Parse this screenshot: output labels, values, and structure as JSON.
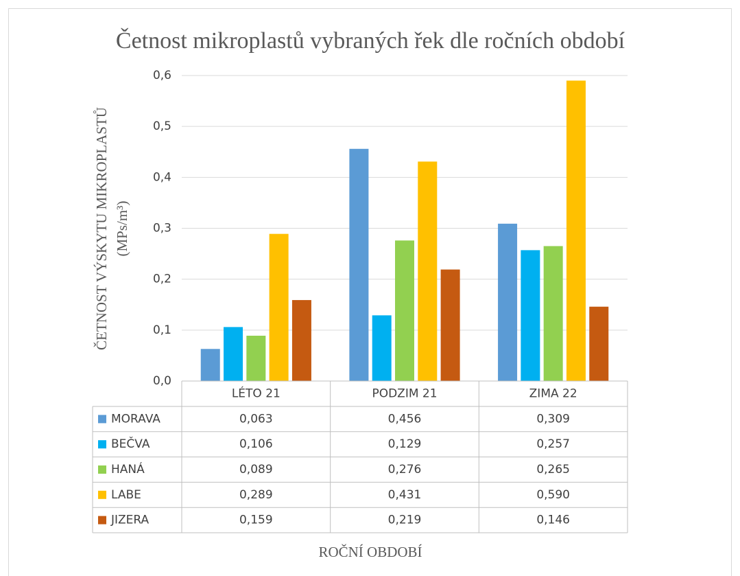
{
  "chart_data": {
    "type": "bar",
    "title": "Četnost mikroplastů vybraných řek dle ročních období",
    "y_label": [
      "ČETNOST VÝSKYTU MIKROPLASTŮ",
      "(MPs/m³)"
    ],
    "x_label": "ROČNÍ OBDOBÍ",
    "categories": [
      "LÉTO 21",
      "PODZIM 21",
      "ZIMA 22"
    ],
    "series": [
      {
        "name": "MORAVA",
        "color": "#5b9bd5",
        "values": [
          0.063,
          0.456,
          0.309
        ],
        "value_labels": [
          "0,063",
          "0,456",
          "0,309"
        ]
      },
      {
        "name": "BEČVA",
        "color": "#00b0f0",
        "values": [
          0.106,
          0.129,
          0.257
        ],
        "value_labels": [
          "0,106",
          "0,129",
          "0,257"
        ]
      },
      {
        "name": "HANÁ",
        "color": "#92d050",
        "values": [
          0.089,
          0.276,
          0.265
        ],
        "value_labels": [
          "0,089",
          "0,276",
          "0,265"
        ]
      },
      {
        "name": "LABE",
        "color": "#ffc000",
        "values": [
          0.289,
          0.431,
          0.59
        ],
        "value_labels": [
          "0,289",
          "0,431",
          "0,590"
        ]
      },
      {
        "name": "JIZERA",
        "color": "#c55a11",
        "values": [
          0.159,
          0.219,
          0.146
        ],
        "value_labels": [
          "0,159",
          "0,219",
          "0,146"
        ]
      }
    ],
    "ylim": [
      0,
      0.6
    ],
    "yticks": [
      {
        "value": 0,
        "label": "0,0"
      },
      {
        "value": 0.1,
        "label": "0,1"
      },
      {
        "value": 0.2,
        "label": "0,2"
      },
      {
        "value": 0.3,
        "label": "0,3"
      },
      {
        "value": 0.4,
        "label": "0,4"
      },
      {
        "value": 0.5,
        "label": "0,5"
      },
      {
        "value": 0.6,
        "label": "0,6"
      }
    ],
    "grid": true
  }
}
